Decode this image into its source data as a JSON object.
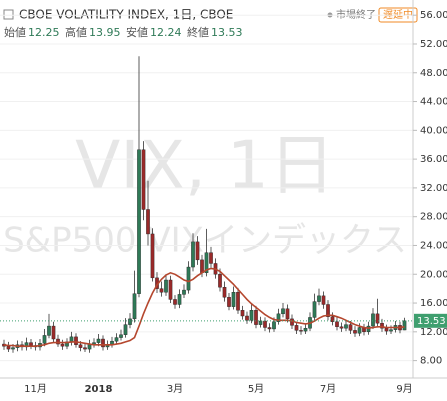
{
  "chart_data": {
    "type": "candlestick",
    "title": "CBOE VOLATILITY INDEX, 1日, CBOE",
    "status": "市場終了",
    "delay": "遅延中",
    "ohlc_labels": [
      "始値",
      "高値",
      "安値",
      "終値"
    ],
    "watermark": [
      "VIX, 1日",
      "S&P500 VIXインデックス"
    ],
    "categories": [
      null,
      null,
      null,
      null,
      null,
      null,
      null,
      "11月",
      null,
      null,
      null,
      null,
      null,
      null,
      null,
      null,
      null,
      null,
      null,
      null,
      null,
      "2018",
      null,
      null,
      null,
      null,
      null,
      null,
      null,
      null,
      null,
      null,
      null,
      null,
      null,
      null,
      null,
      null,
      "3月",
      null,
      null,
      null,
      null,
      null,
      null,
      null,
      null,
      null,
      null,
      null,
      null,
      null,
      null,
      null,
      null,
      null,
      "5月",
      null,
      null,
      null,
      null,
      null,
      null,
      null,
      null,
      null,
      null,
      null,
      null,
      null,
      null,
      null,
      "7月",
      null,
      null,
      null,
      null,
      null,
      null,
      null,
      null,
      null,
      null,
      null,
      null,
      null,
      null,
      null,
      null,
      "9月"
    ],
    "open": [
      10.3,
      10.0,
      9.6,
      9.8,
      10.2,
      9.9,
      10.5,
      10.1,
      9.9,
      10.4,
      11.5,
      12.8,
      11.0,
      10.3,
      10.0,
      10.6,
      11.3,
      10.2,
      9.8,
      9.6,
      10.3,
      10.5,
      11.0,
      9.9,
      10.2,
      10.7,
      11.2,
      11.6,
      13.0,
      13.8,
      17.3,
      37.3,
      29.0,
      25.6,
      19.5,
      18.0,
      17.5,
      19.2,
      16.5,
      15.8,
      17.2,
      17.8,
      21.0,
      24.5,
      22.0,
      20.2,
      23.0,
      21.5,
      20.0,
      18.2,
      16.8,
      15.5,
      17.5,
      15.0,
      14.2,
      13.6,
      15.0,
      13.0,
      13.5,
      12.6,
      12.4,
      13.4,
      14.5,
      15.2,
      13.8,
      12.9,
      12.2,
      12.1,
      12.5,
      14.0,
      16.2,
      17.0,
      15.8,
      14.1,
      13.4,
      12.7,
      12.5,
      13.0,
      12.2,
      11.8,
      12.6,
      12.0,
      12.8,
      14.5,
      13.2,
      12.5,
      12.1,
      12.3,
      12.9,
      12.25
    ],
    "high": [
      10.9,
      10.6,
      10.3,
      10.8,
      10.7,
      11.2,
      11.0,
      10.6,
      11.0,
      12.4,
      14.5,
      13.4,
      11.6,
      10.9,
      11.1,
      12.0,
      11.8,
      10.7,
      10.3,
      10.9,
      11.1,
      11.7,
      11.5,
      10.8,
      11.3,
      11.8,
      12.3,
      13.9,
      14.6,
      20.5,
      50.3,
      38.5,
      33.0,
      26.4,
      20.3,
      19.0,
      20.0,
      19.8,
      17.1,
      17.9,
      18.6,
      21.8,
      25.7,
      25.3,
      22.7,
      26.3,
      23.8,
      22.2,
      20.8,
      19.0,
      17.4,
      18.3,
      18.1,
      15.6,
      14.8,
      15.8,
      15.6,
      14.1,
      14.0,
      13.2,
      14.0,
      15.2,
      16.0,
      15.8,
      14.4,
      13.4,
      12.8,
      13.1,
      14.7,
      17.3,
      18.0,
      17.6,
      16.4,
      14.7,
      14.0,
      13.3,
      13.6,
      13.5,
      12.8,
      13.2,
      13.1,
      13.4,
      15.3,
      16.6,
      13.8,
      13.0,
      12.9,
      13.5,
      13.4,
      13.95
    ],
    "low": [
      9.5,
      9.2,
      9.1,
      9.3,
      9.4,
      9.4,
      9.6,
      9.4,
      9.4,
      10.0,
      11.1,
      10.5,
      9.9,
      9.5,
      9.6,
      10.1,
      9.8,
      9.3,
      9.2,
      9.1,
      9.8,
      10.0,
      9.4,
      9.5,
      9.8,
      10.3,
      10.8,
      11.2,
      12.5,
      13.3,
      16.8,
      27.5,
      24.0,
      19.0,
      17.4,
      16.9,
      17.0,
      16.0,
      15.2,
      15.3,
      16.7,
      17.3,
      20.4,
      21.3,
      19.6,
      19.7,
      20.9,
      19.4,
      17.6,
      16.2,
      15.0,
      15.1,
      14.5,
      13.7,
      13.1,
      13.2,
      12.5,
      12.6,
      12.1,
      11.9,
      12.0,
      13.0,
      14.0,
      13.3,
      12.4,
      11.7,
      11.6,
      11.7,
      12.1,
      13.6,
      15.7,
      15.2,
      13.6,
      12.9,
      12.2,
      12.0,
      12.1,
      11.7,
      11.3,
      11.4,
      11.5,
      11.6,
      12.4,
      12.7,
      12.0,
      11.6,
      11.7,
      11.9,
      11.8,
      12.24
    ],
    "close": [
      10.0,
      9.6,
      9.8,
      10.2,
      9.9,
      10.5,
      10.1,
      9.9,
      10.4,
      11.5,
      12.8,
      11.0,
      10.3,
      10.0,
      10.6,
      11.3,
      10.2,
      9.8,
      9.6,
      10.3,
      10.5,
      11.0,
      9.9,
      10.2,
      10.7,
      11.2,
      11.6,
      13.0,
      13.8,
      17.3,
      37.3,
      29.0,
      25.6,
      19.5,
      18.0,
      17.5,
      19.2,
      16.5,
      15.8,
      17.2,
      17.8,
      21.0,
      24.5,
      22.0,
      20.2,
      23.0,
      21.5,
      20.0,
      18.2,
      16.8,
      15.5,
      17.5,
      15.0,
      14.2,
      13.6,
      15.0,
      13.0,
      13.5,
      12.6,
      12.4,
      13.4,
      14.5,
      15.2,
      13.8,
      12.9,
      12.2,
      12.1,
      12.5,
      14.0,
      16.2,
      17.0,
      15.8,
      14.1,
      13.4,
      12.7,
      12.5,
      13.0,
      12.2,
      11.8,
      12.6,
      12.0,
      12.8,
      14.5,
      13.2,
      12.5,
      12.1,
      12.3,
      12.9,
      12.25,
      13.53
    ],
    "ma": [
      10.2,
      10.1,
      10.1,
      10.0,
      10.0,
      10.0,
      10.0,
      10.0,
      10.1,
      10.2,
      10.4,
      10.5,
      10.5,
      10.5,
      10.5,
      10.6,
      10.6,
      10.5,
      10.4,
      10.3,
      10.2,
      10.2,
      10.2,
      10.2,
      10.2,
      10.3,
      10.4,
      10.6,
      10.8,
      11.2,
      12.8,
      14.5,
      16.0,
      17.4,
      18.5,
      19.3,
      19.9,
      20.2,
      20.0,
      19.6,
      19.2,
      19.0,
      19.3,
      19.8,
      20.2,
      20.6,
      20.8,
      20.7,
      20.4,
      19.8,
      19.2,
      18.6,
      17.9,
      17.2,
      16.5,
      15.9,
      15.4,
      14.9,
      14.4,
      14.0,
      13.7,
      13.6,
      13.6,
      13.6,
      13.5,
      13.3,
      13.2,
      13.1,
      13.2,
      13.5,
      13.9,
      14.2,
      14.3,
      14.3,
      14.1,
      13.9,
      13.6,
      13.3,
      13.0,
      12.8,
      12.6,
      12.5,
      12.6,
      12.7,
      12.7,
      12.6,
      12.6,
      12.6,
      12.6,
      12.7
    ],
    "up_color": "#2f7a57",
    "down_color": "#9a2a2a",
    "ma_color": "#b5472e",
    "last_color": "#3f9f6f",
    "ylim": [
      6,
      57
    ],
    "yticks": [
      {
        "value": 8,
        "label": "8.00"
      },
      {
        "value": 12,
        "label": "12.00"
      },
      {
        "value": 16,
        "label": "16.00"
      },
      {
        "value": 20,
        "label": "20.00"
      },
      {
        "value": 24,
        "label": "24.00"
      },
      {
        "value": 28,
        "label": "28.00"
      },
      {
        "value": 32,
        "label": "32.00"
      },
      {
        "value": 36,
        "label": "36.00"
      },
      {
        "value": 40,
        "label": "40.00"
      },
      {
        "value": 44,
        "label": "44.00"
      },
      {
        "value": 48,
        "label": "48.00"
      },
      {
        "value": 52,
        "label": "52.00"
      },
      {
        "value": 56,
        "label": "56.00"
      }
    ],
    "grid": true
  }
}
